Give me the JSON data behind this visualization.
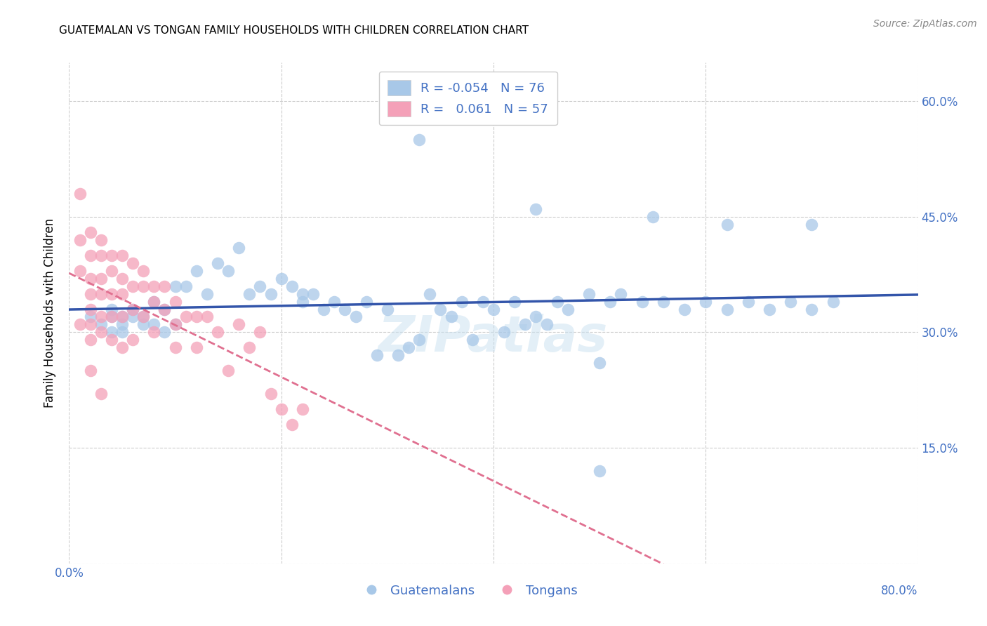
{
  "title": "GUATEMALAN VS TONGAN FAMILY HOUSEHOLDS WITH CHILDREN CORRELATION CHART",
  "source": "Source: ZipAtlas.com",
  "ylabel": "Family Households with Children",
  "watermark": "ZIPatlas",
  "blue_color": "#a8c8e8",
  "pink_color": "#f4a0b8",
  "line_blue": "#3355aa",
  "line_pink": "#e07090",
  "axis_color": "#4472c4",
  "xlim": [
    0.0,
    0.8
  ],
  "ylim": [
    0.0,
    0.65
  ],
  "yticks": [
    0.0,
    0.15,
    0.3,
    0.45,
    0.6
  ],
  "ytick_labels": [
    "",
    "15.0%",
    "30.0%",
    "45.0%",
    "60.0%"
  ],
  "guatemalan_x": [
    0.02,
    0.03,
    0.04,
    0.04,
    0.04,
    0.05,
    0.05,
    0.05,
    0.06,
    0.06,
    0.07,
    0.07,
    0.08,
    0.08,
    0.09,
    0.09,
    0.1,
    0.1,
    0.11,
    0.12,
    0.13,
    0.14,
    0.15,
    0.16,
    0.17,
    0.18,
    0.19,
    0.2,
    0.21,
    0.22,
    0.22,
    0.23,
    0.24,
    0.25,
    0.26,
    0.27,
    0.28,
    0.29,
    0.3,
    0.31,
    0.32,
    0.33,
    0.34,
    0.35,
    0.36,
    0.37,
    0.38,
    0.39,
    0.4,
    0.41,
    0.42,
    0.43,
    0.44,
    0.45,
    0.46,
    0.47,
    0.49,
    0.5,
    0.51,
    0.52,
    0.54,
    0.56,
    0.58,
    0.6,
    0.62,
    0.64,
    0.66,
    0.68,
    0.7,
    0.72,
    0.33,
    0.44,
    0.5,
    0.55,
    0.62,
    0.7
  ],
  "guatemalan_y": [
    0.32,
    0.31,
    0.3,
    0.32,
    0.33,
    0.31,
    0.32,
    0.3,
    0.33,
    0.32,
    0.32,
    0.31,
    0.34,
    0.31,
    0.33,
    0.3,
    0.36,
    0.31,
    0.36,
    0.38,
    0.35,
    0.39,
    0.38,
    0.41,
    0.35,
    0.36,
    0.35,
    0.37,
    0.36,
    0.35,
    0.34,
    0.35,
    0.33,
    0.34,
    0.33,
    0.32,
    0.34,
    0.27,
    0.33,
    0.27,
    0.28,
    0.29,
    0.35,
    0.33,
    0.32,
    0.34,
    0.29,
    0.34,
    0.33,
    0.3,
    0.34,
    0.31,
    0.32,
    0.31,
    0.34,
    0.33,
    0.35,
    0.12,
    0.34,
    0.35,
    0.34,
    0.34,
    0.33,
    0.34,
    0.33,
    0.34,
    0.33,
    0.34,
    0.33,
    0.34,
    0.55,
    0.46,
    0.26,
    0.45,
    0.44,
    0.44
  ],
  "tongan_x": [
    0.01,
    0.01,
    0.01,
    0.01,
    0.02,
    0.02,
    0.02,
    0.02,
    0.02,
    0.02,
    0.02,
    0.02,
    0.03,
    0.03,
    0.03,
    0.03,
    0.03,
    0.03,
    0.03,
    0.04,
    0.04,
    0.04,
    0.04,
    0.04,
    0.05,
    0.05,
    0.05,
    0.05,
    0.05,
    0.06,
    0.06,
    0.06,
    0.06,
    0.07,
    0.07,
    0.07,
    0.08,
    0.08,
    0.08,
    0.09,
    0.09,
    0.1,
    0.1,
    0.1,
    0.11,
    0.12,
    0.12,
    0.13,
    0.14,
    0.15,
    0.16,
    0.17,
    0.18,
    0.19,
    0.2,
    0.21,
    0.22
  ],
  "tongan_y": [
    0.48,
    0.42,
    0.38,
    0.31,
    0.43,
    0.4,
    0.37,
    0.35,
    0.33,
    0.31,
    0.29,
    0.25,
    0.42,
    0.4,
    0.37,
    0.35,
    0.32,
    0.3,
    0.22,
    0.4,
    0.38,
    0.35,
    0.32,
    0.29,
    0.4,
    0.37,
    0.35,
    0.32,
    0.28,
    0.39,
    0.36,
    0.33,
    0.29,
    0.38,
    0.36,
    0.32,
    0.36,
    0.34,
    0.3,
    0.36,
    0.33,
    0.34,
    0.31,
    0.28,
    0.32,
    0.32,
    0.28,
    0.32,
    0.3,
    0.25,
    0.31,
    0.28,
    0.3,
    0.22,
    0.2,
    0.18,
    0.2
  ]
}
